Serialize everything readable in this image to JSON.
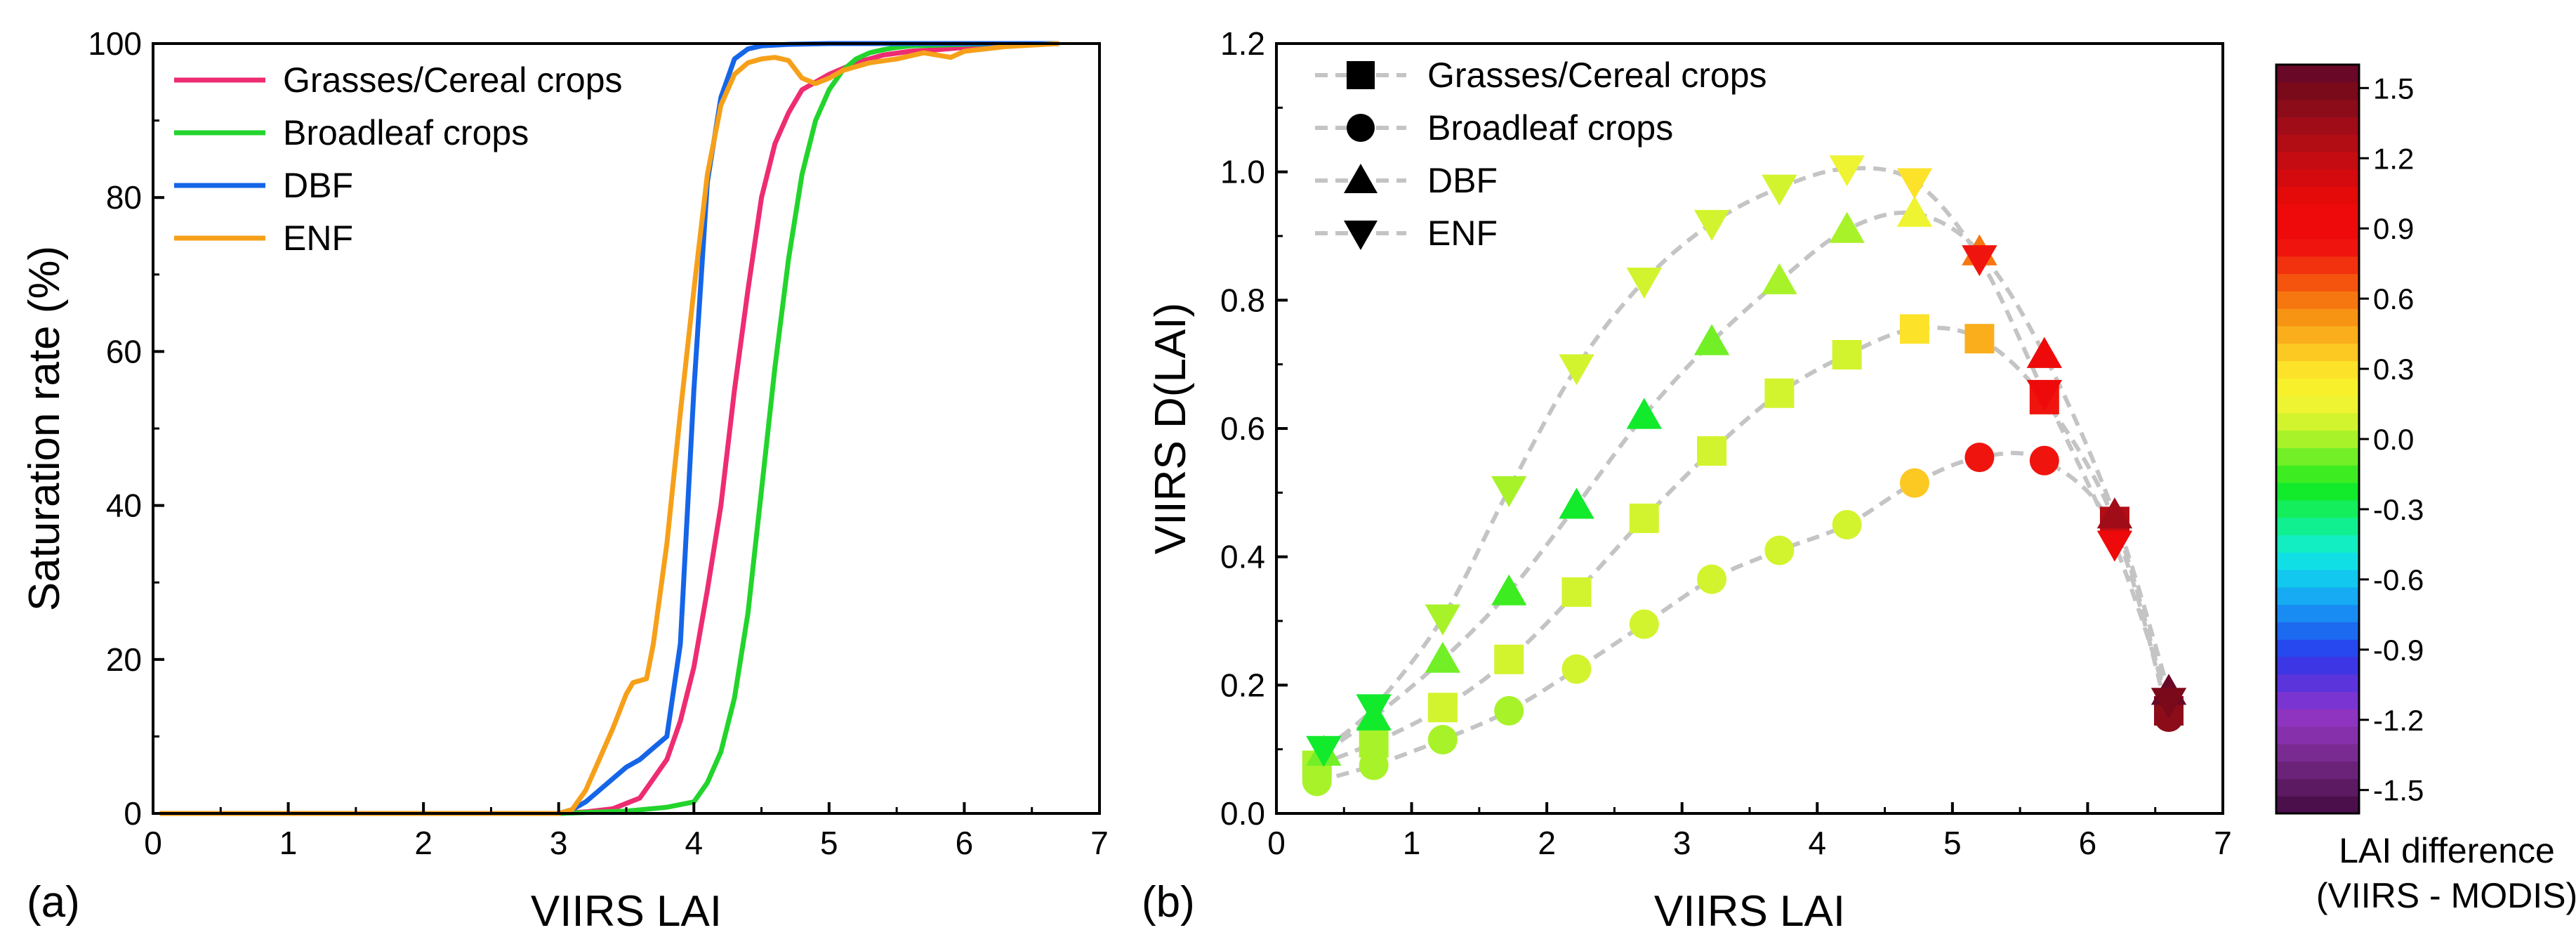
{
  "panel_a": {
    "label": "(a)",
    "chart_data": {
      "type": "line",
      "title": "",
      "xlabel": "VIIRS LAI",
      "ylabel": "Saturation rate (%)",
      "xlim": [
        0,
        7
      ],
      "ylim": [
        0,
        100
      ],
      "xticks": [
        "0",
        "1",
        "2",
        "3",
        "4",
        "5",
        "6",
        "7"
      ],
      "yticks": [
        "0",
        "20",
        "40",
        "60",
        "80",
        "100"
      ],
      "legend_position": "top-left",
      "series": [
        {
          "name": "Grasses/Cereal crops",
          "color": "#ee2c72",
          "x": [
            0.05,
            3.0,
            3.2,
            3.4,
            3.6,
            3.8,
            3.9,
            4.0,
            4.1,
            4.2,
            4.3,
            4.4,
            4.5,
            4.6,
            4.7,
            4.8,
            5.0,
            5.2,
            5.4,
            5.6,
            5.8,
            6.0,
            6.2,
            6.4,
            6.7
          ],
          "y": [
            0,
            0,
            0.2,
            0.6,
            2,
            7,
            12,
            19,
            29,
            40,
            55,
            68,
            80,
            87,
            91,
            94,
            96,
            97.5,
            98.5,
            99,
            99.2,
            99.5,
            99.7,
            99.9,
            100
          ]
        },
        {
          "name": "Broadleaf crops",
          "color": "#22d42c",
          "x": [
            0.05,
            3.0,
            3.5,
            3.8,
            4.0,
            4.1,
            4.2,
            4.3,
            4.4,
            4.5,
            4.6,
            4.7,
            4.8,
            4.9,
            5.0,
            5.1,
            5.2,
            5.3,
            5.4,
            5.5,
            5.6,
            5.8,
            6.0,
            6.3,
            6.7
          ],
          "y": [
            0,
            0,
            0.3,
            0.8,
            1.5,
            4,
            8,
            15,
            26,
            42,
            58,
            72,
            83,
            90,
            94,
            96.5,
            98,
            98.8,
            99.2,
            99.5,
            99.7,
            99.8,
            99.9,
            100,
            100
          ]
        },
        {
          "name": "DBF",
          "color": "#1565e8",
          "x": [
            0.05,
            3.0,
            3.1,
            3.2,
            3.3,
            3.4,
            3.5,
            3.6,
            3.7,
            3.8,
            3.9,
            4.0,
            4.1,
            4.2,
            4.3,
            4.4,
            4.5,
            4.7,
            5.0,
            5.5,
            6.0,
            6.7
          ],
          "y": [
            0,
            0,
            0.5,
            1.5,
            3,
            4.5,
            6,
            7,
            8.5,
            10,
            22,
            55,
            82,
            93,
            98,
            99.3,
            99.7,
            99.9,
            100,
            100,
            100,
            100
          ]
        },
        {
          "name": "ENF",
          "color": "#f6a01a",
          "x": [
            0.05,
            3.0,
            3.1,
            3.2,
            3.3,
            3.4,
            3.5,
            3.55,
            3.65,
            3.7,
            3.8,
            3.9,
            4.0,
            4.1,
            4.2,
            4.3,
            4.4,
            4.5,
            4.6,
            4.7,
            4.8,
            4.9,
            5.0,
            5.1,
            5.3,
            5.5,
            5.7,
            5.9,
            6.0,
            6.3,
            6.7
          ],
          "y": [
            0,
            0,
            0.5,
            3,
            7,
            11,
            15.5,
            17,
            17.5,
            22,
            35,
            52,
            68,
            83,
            92,
            96,
            97.5,
            98,
            98.2,
            97.8,
            95.5,
            94.8,
            95.5,
            96.5,
            97.5,
            98,
            98.8,
            98.2,
            99,
            99.6,
            100
          ]
        }
      ]
    }
  },
  "panel_b": {
    "label": "(b)",
    "chart_data": {
      "type": "scatter",
      "title": "",
      "xlabel": "VIIRS LAI",
      "ylabel": "VIIRS D(LAI)",
      "xlim": [
        0,
        7
      ],
      "ylim": [
        0,
        1.2
      ],
      "xticks": [
        "0",
        "1",
        "2",
        "3",
        "4",
        "5",
        "6",
        "7"
      ],
      "yticks": [
        "0.0",
        "0.2",
        "0.4",
        "0.6",
        "0.8",
        "1.0",
        "1.2"
      ],
      "legend_position": "top-left",
      "connector": "gray dashed line",
      "series": [
        {
          "name": "Grasses/Cereal crops",
          "marker": "square",
          "x": [
            0.3,
            0.72,
            1.23,
            1.72,
            2.22,
            2.72,
            3.22,
            3.72,
            4.22,
            4.72,
            5.2,
            5.68,
            6.2,
            6.6
          ],
          "y": [
            0.075,
            0.11,
            0.165,
            0.24,
            0.345,
            0.46,
            0.565,
            0.655,
            0.715,
            0.755,
            0.74,
            0.645,
            0.455,
            0.16
          ],
          "diff": [
            0.0,
            0.0,
            0.05,
            0.05,
            0.1,
            0.1,
            0.1,
            0.1,
            0.1,
            0.3,
            0.45,
            0.8,
            1.3,
            1.45
          ]
        },
        {
          "name": "Broadleaf crops",
          "marker": "circle",
          "x": [
            0.3,
            0.72,
            1.23,
            1.72,
            2.22,
            2.72,
            3.22,
            3.72,
            4.22,
            4.72,
            5.2,
            5.68,
            6.2,
            6.6
          ],
          "y": [
            0.05,
            0.075,
            0.115,
            0.16,
            0.225,
            0.295,
            0.365,
            0.41,
            0.45,
            0.515,
            0.555,
            0.55,
            0.44,
            0.15
          ],
          "diff": [
            0.0,
            0.0,
            0.0,
            0.0,
            0.05,
            0.05,
            0.05,
            0.1,
            0.1,
            0.4,
            0.85,
            0.85,
            1.2,
            1.4
          ]
        },
        {
          "name": "DBF",
          "marker": "triangle-up",
          "x": [
            0.35,
            0.72,
            1.23,
            1.72,
            2.22,
            2.72,
            3.22,
            3.72,
            4.22,
            4.72,
            5.2,
            5.68,
            6.2,
            6.6
          ],
          "y": [
            0.095,
            0.15,
            0.24,
            0.345,
            0.48,
            0.62,
            0.735,
            0.83,
            0.91,
            0.935,
            0.875,
            0.715,
            0.465,
            0.19
          ],
          "diff": [
            -0.1,
            -0.2,
            -0.05,
            -0.15,
            -0.2,
            -0.2,
            -0.1,
            0.0,
            0.0,
            0.15,
            0.6,
            1.0,
            1.35,
            1.55
          ]
        },
        {
          "name": "ENF",
          "marker": "triangle-down",
          "x": [
            0.35,
            0.72,
            1.23,
            1.72,
            2.22,
            2.72,
            3.22,
            3.72,
            4.22,
            4.72,
            5.2,
            5.68,
            6.2,
            6.6
          ],
          "y": [
            0.1,
            0.165,
            0.305,
            0.505,
            0.695,
            0.83,
            0.92,
            0.975,
            1.005,
            0.985,
            0.865,
            0.655,
            0.42,
            0.175
          ],
          "diff": [
            -0.2,
            -0.2,
            0.0,
            0.0,
            0.05,
            0.05,
            0.1,
            0.1,
            0.15,
            0.3,
            0.8,
            1.0,
            1.0,
            1.5
          ]
        }
      ]
    }
  },
  "colorbar": {
    "title_line1": "LAI difference",
    "title_line2": "(VIIRS - MODIS)",
    "min": -1.6,
    "max": 1.6,
    "tick_values": [
      -1.5,
      -1.2,
      -0.9,
      -0.6,
      -0.3,
      0.0,
      0.3,
      0.6,
      0.9,
      1.2,
      1.5
    ],
    "tick_labels": [
      "-1.5",
      "-1.2",
      "-0.9",
      "-0.6",
      "-0.3",
      "0.0",
      "0.3",
      "0.6",
      "0.9",
      "1.2",
      "1.5"
    ],
    "colors_bottom_to_top": [
      "#4b0f4b",
      "#5c1a63",
      "#6b237a",
      "#7a2b92",
      "#8630ab",
      "#8e34c0",
      "#7a34d2",
      "#5c34dc",
      "#3d36e4",
      "#2748ee",
      "#1c6af0",
      "#188cf2",
      "#16abf2",
      "#12c8ee",
      "#10e0e6",
      "#12eec2",
      "#10f090",
      "#14ee5c",
      "#12ea2c",
      "#3eec22",
      "#72ef26",
      "#a8f22a",
      "#d2f42e",
      "#eef432",
      "#f8f02a",
      "#fde22a",
      "#fcc822",
      "#faae1c",
      "#f89414",
      "#f67610",
      "#f4540e",
      "#f2320e",
      "#f0140e",
      "#ee0a0a",
      "#ee0a0a",
      "#e40a0a",
      "#d40a0e",
      "#c40c12",
      "#b20c14",
      "#a00c18",
      "#8c0c1a",
      "#7a0a1a",
      "#6a0828"
    ]
  }
}
